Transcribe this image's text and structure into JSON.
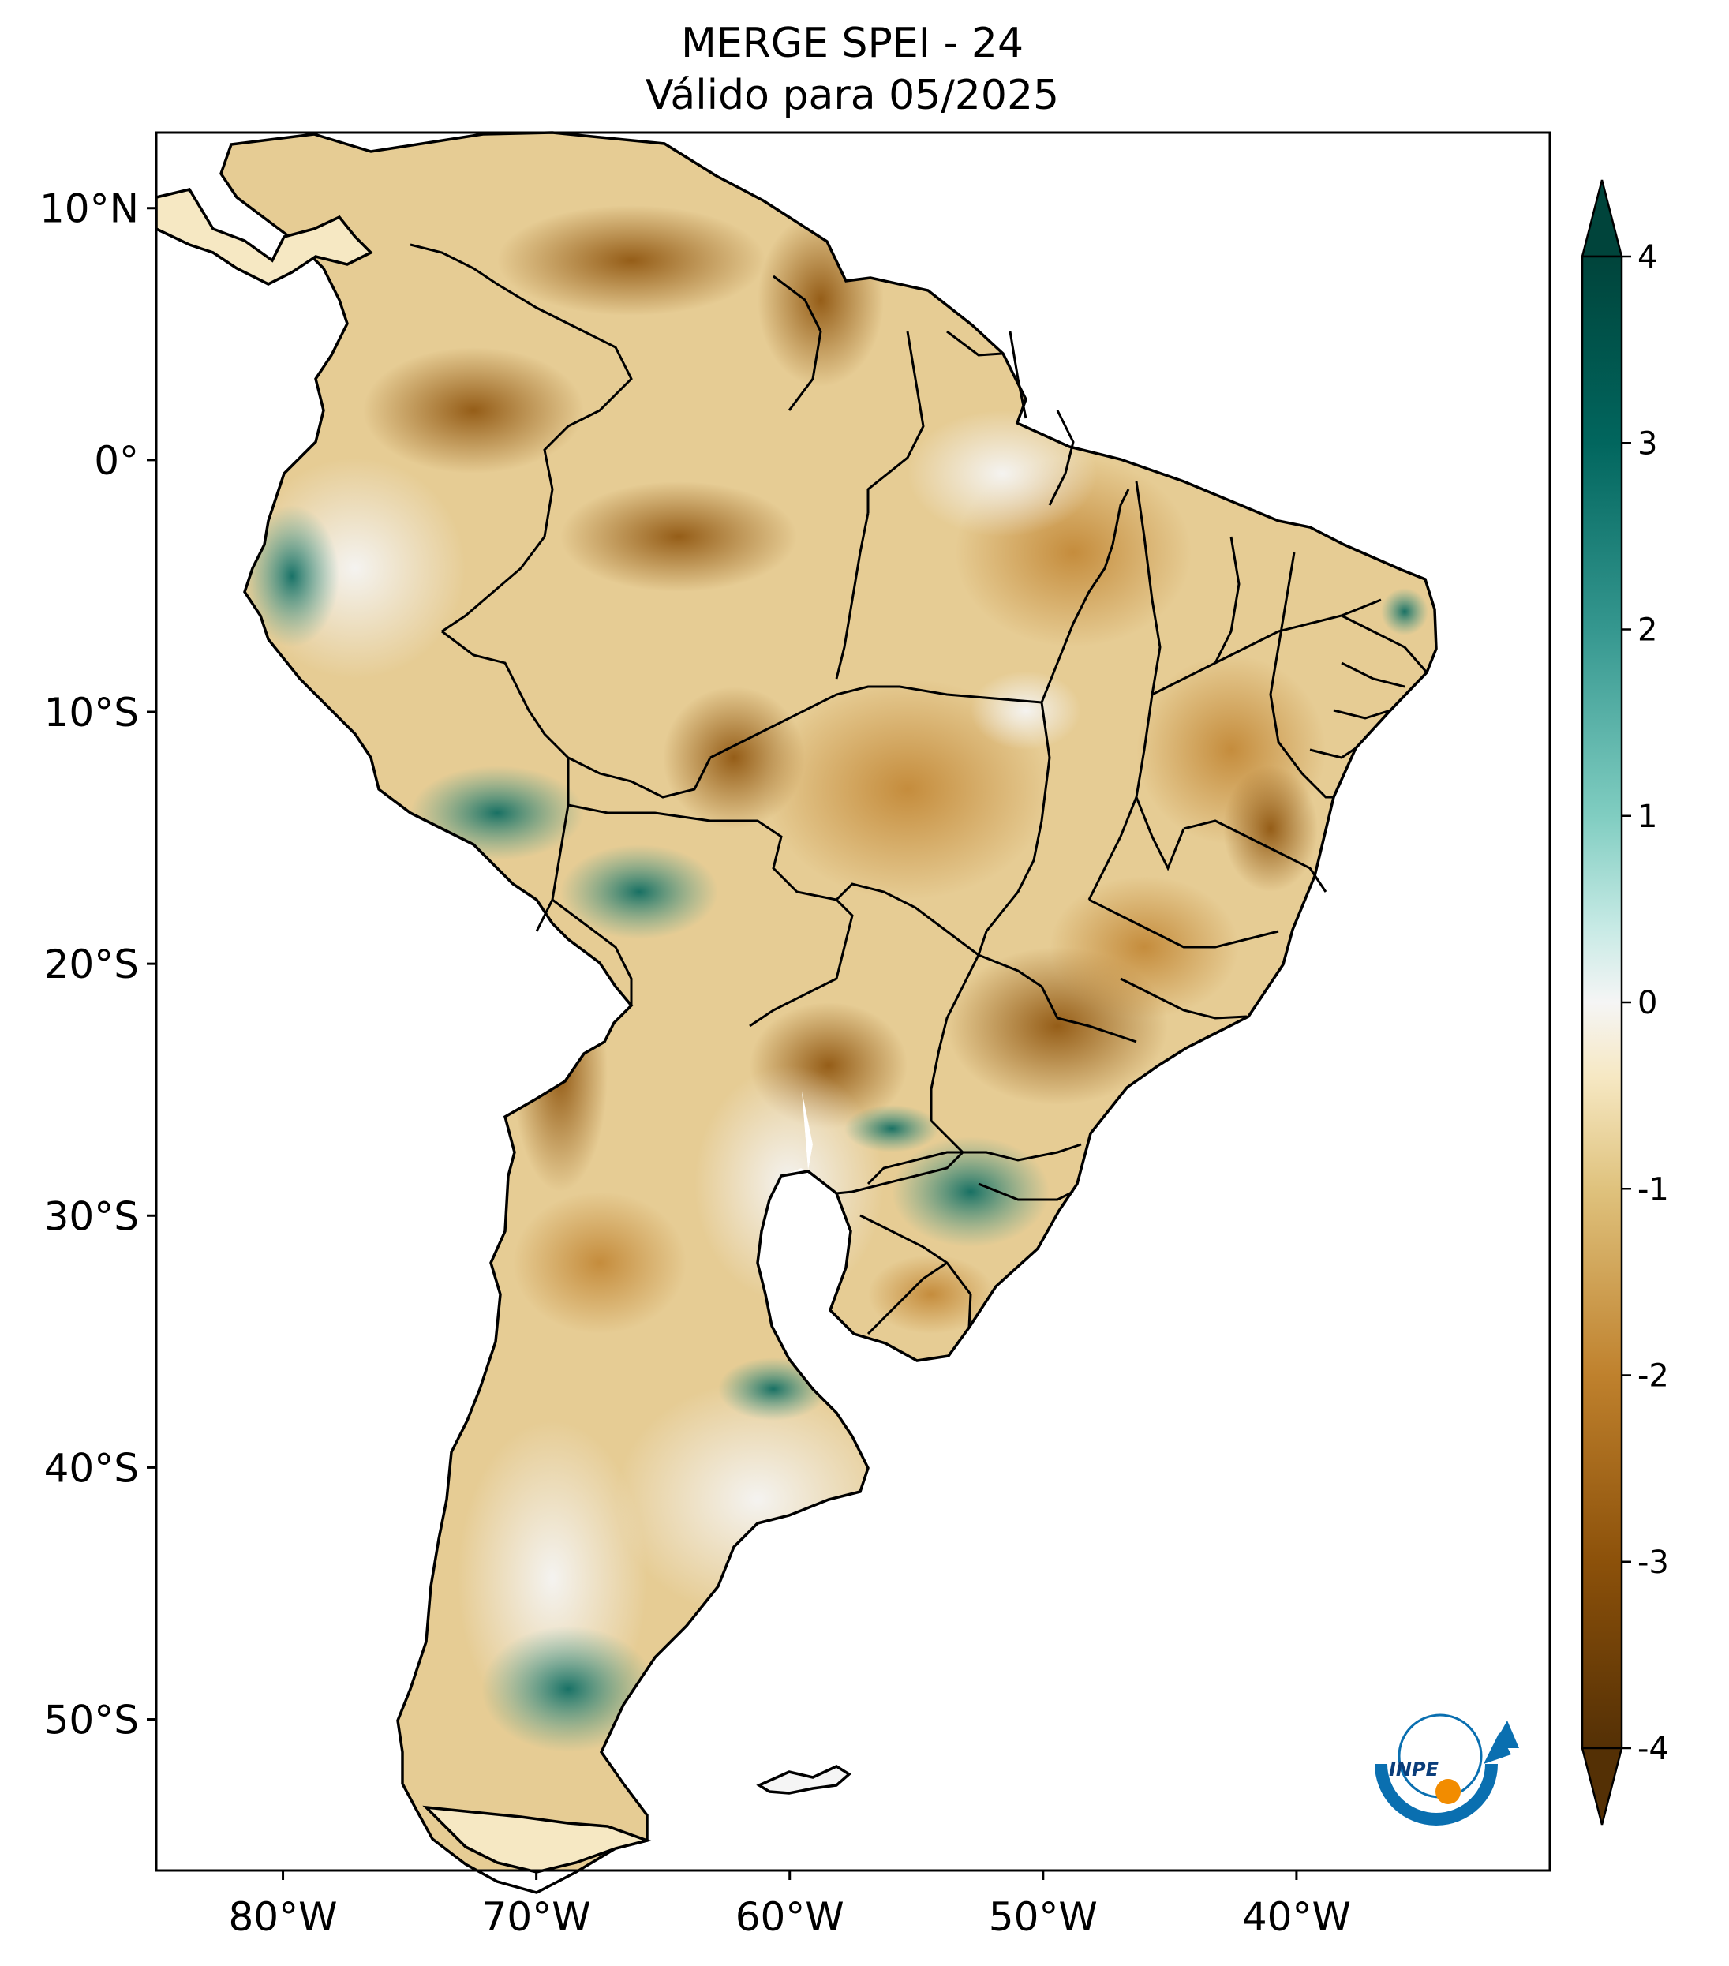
{
  "title": {
    "line1": "MERGE   SPEI - 24",
    "line2": "Válido para 05/2025"
  },
  "map": {
    "lon_range": [
      -85,
      -30
    ],
    "lat_range": [
      -56,
      13
    ],
    "lon_ticks": [
      {
        "value": -80,
        "label": "80°W"
      },
      {
        "value": -70,
        "label": "70°W"
      },
      {
        "value": -60,
        "label": "60°W"
      },
      {
        "value": -50,
        "label": "50°W"
      },
      {
        "value": -40,
        "label": "40°W"
      }
    ],
    "lat_ticks": [
      {
        "value": 10,
        "label": "10°N"
      },
      {
        "value": 0,
        "label": "0°"
      },
      {
        "value": -10,
        "label": "10°S"
      },
      {
        "value": -20,
        "label": "20°S"
      },
      {
        "value": -30,
        "label": "30°S"
      },
      {
        "value": -40,
        "label": "40°S"
      },
      {
        "value": -50,
        "label": "50°S"
      }
    ]
  },
  "colorbar": {
    "range": [
      -4,
      4
    ],
    "extend": "both",
    "ticks": [
      {
        "value": 4,
        "label": "4"
      },
      {
        "value": 3,
        "label": "3"
      },
      {
        "value": 2,
        "label": "2"
      },
      {
        "value": 1,
        "label": "1"
      },
      {
        "value": 0,
        "label": "0"
      },
      {
        "value": -1,
        "label": "-1"
      },
      {
        "value": -2,
        "label": "-2"
      },
      {
        "value": -3,
        "label": "-3"
      },
      {
        "value": -4,
        "label": "-4"
      }
    ],
    "colors": {
      "wet_extreme": "#00443b",
      "wet_strong": "#01665e",
      "wet_moderate": "#35978f",
      "wet_mild": "#80cdc1",
      "wet_slight": "#c7eae5",
      "neutral": "#f5f5f5",
      "dry_slight": "#f6e8c3",
      "dry_mild": "#dfc27d",
      "dry_moderate": "#bf812d",
      "dry_strong": "#8c510a",
      "dry_extreme": "#543005"
    }
  },
  "logo": {
    "text": "INPE",
    "colors": {
      "blue": "#0a6fb0",
      "orange": "#f28c00"
    }
  }
}
